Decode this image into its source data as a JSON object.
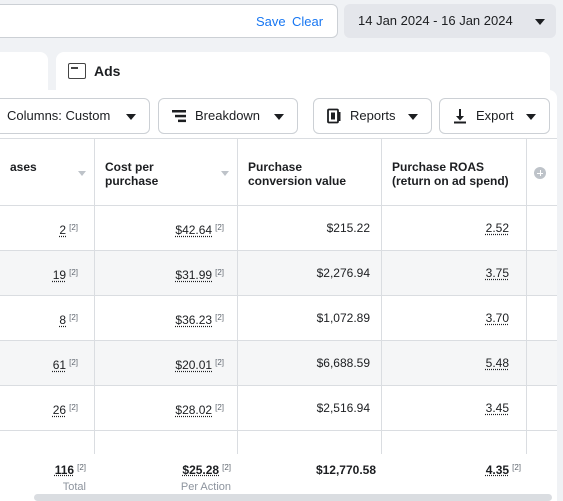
{
  "filter_bar": {
    "save_label": "Save",
    "clear_label": "Clear",
    "date_range": "14 Jan 2024 - 16 Jan 2024"
  },
  "level_tabs": {
    "ads_label": "Ads"
  },
  "toolbar": {
    "columns_label": "Columns: Custom",
    "breakdown_label": "Breakdown",
    "reports_label": "Reports",
    "export_label": "Export"
  },
  "table": {
    "headers": [
      "ases",
      "Cost per\npurchase",
      "Purchase\nconversion value",
      "Purchase ROAS\n(return on ad spend)"
    ],
    "note_marker": "[2]",
    "rows": [
      {
        "purchases": "2",
        "cost_per_purchase": "$42.64",
        "conversion_value": "$215.22",
        "roas": "2.52"
      },
      {
        "purchases": "19",
        "cost_per_purchase": "$31.99",
        "conversion_value": "$2,276.94",
        "roas": "3.75"
      },
      {
        "purchases": "8",
        "cost_per_purchase": "$36.23",
        "conversion_value": "$1,072.89",
        "roas": "3.70"
      },
      {
        "purchases": "61",
        "cost_per_purchase": "$20.01",
        "conversion_value": "$6,688.59",
        "roas": "5.48"
      },
      {
        "purchases": "26",
        "cost_per_purchase": "$28.02",
        "conversion_value": "$2,516.94",
        "roas": "3.45"
      }
    ],
    "totals": {
      "purchases": "116",
      "purchases_sub": "Total",
      "cost_per_purchase": "$25.28",
      "cost_sub": "Per Action",
      "conversion_value": "$12,770.58",
      "roas": "4.35"
    }
  },
  "colors": {
    "link": "#1877f2",
    "border": "#dadde1",
    "alt_row": "#f5f6f7",
    "background": "#f0f2f5"
  }
}
